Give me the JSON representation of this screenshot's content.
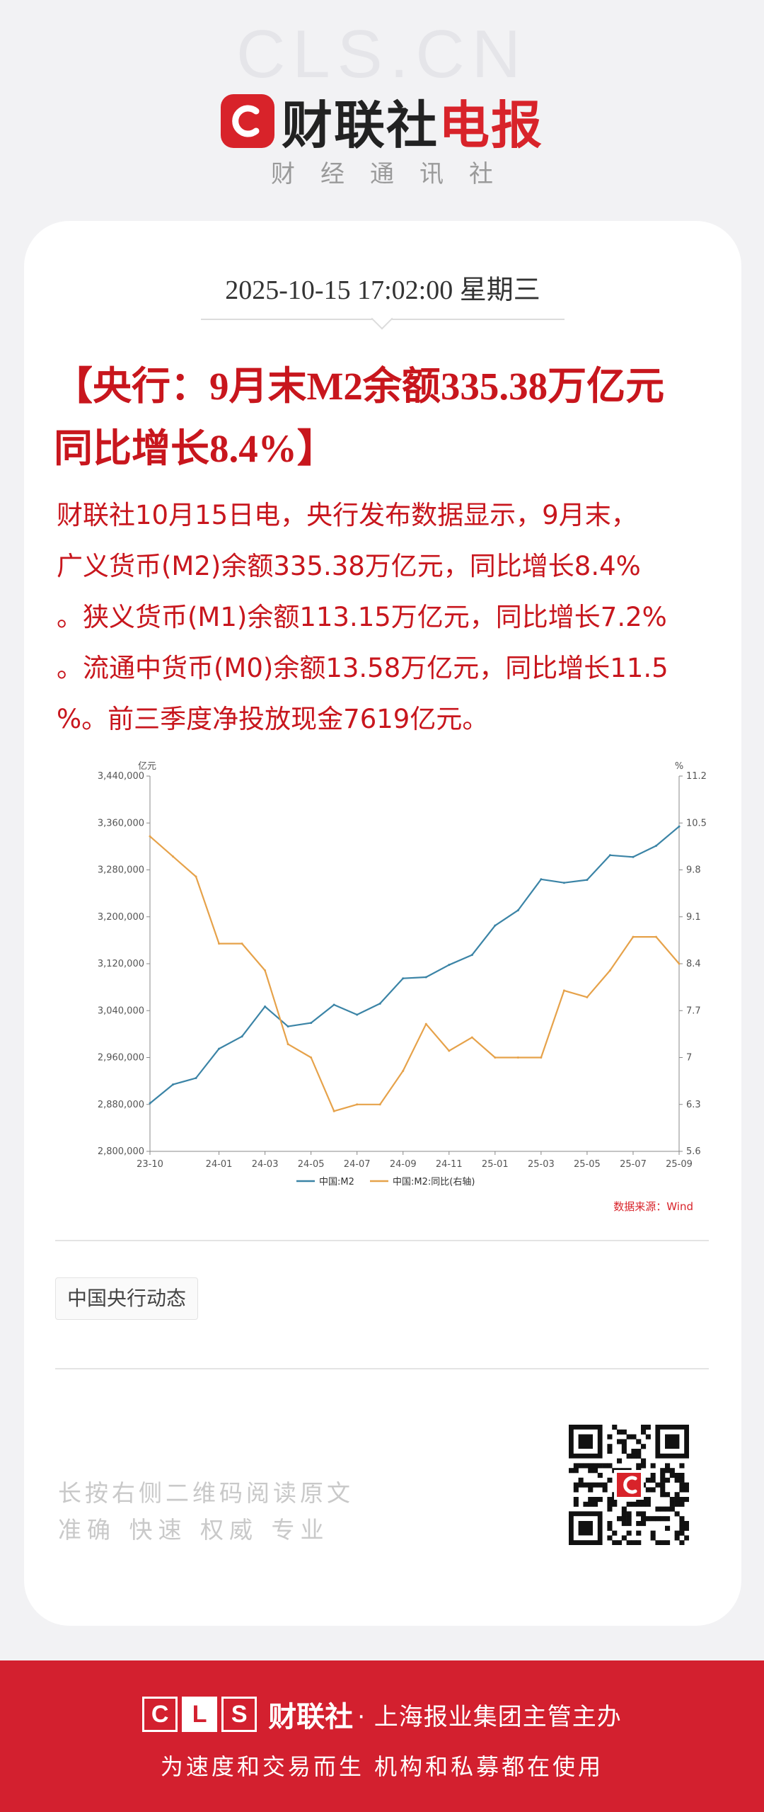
{
  "watermark": "CLS.CN",
  "brand": {
    "logo_letter": "C",
    "name_part1": "财联社",
    "name_part2": "电报",
    "tagline": "财经通讯社"
  },
  "article": {
    "datetime": "2025-10-15 17:02:00 星期三",
    "headline_line1": "【央行：9月末M2余额335.38万亿元",
    "headline_line2": "同比增长8.4%】",
    "body_lines": [
      "财联社10月15日电，央行发布数据显示，9月末，",
      "广义货币(M2)余额335.38万亿元，同比增长8.4%",
      "。狭义货币(M1)余额113.15万亿元，同比增长7.2%",
      "。流通中货币(M0)余额13.58万亿元，同比增长11.5",
      "%。前三季度净投放现金7619亿元。"
    ],
    "tag": "中国央行动态"
  },
  "chart_data": {
    "type": "line",
    "x": [
      "23-10",
      "23-11",
      "23-12",
      "24-01",
      "24-02",
      "24-03",
      "24-04",
      "24-05",
      "24-06",
      "24-07",
      "24-08",
      "24-09",
      "24-10",
      "24-11",
      "24-12",
      "25-01",
      "25-02",
      "25-03",
      "25-04",
      "25-05",
      "25-06",
      "25-07",
      "25-08",
      "25-09"
    ],
    "x_tick_labels": [
      "23-10",
      "24-01",
      "24-03",
      "24-05",
      "24-07",
      "24-09",
      "24-11",
      "25-01",
      "25-03",
      "25-05",
      "25-07",
      "25-09"
    ],
    "series": [
      {
        "name": "中国:M2",
        "axis": "left",
        "color": "#3b84a6",
        "values": [
          2882000,
          2914000,
          2925000,
          2975000,
          2996000,
          3047000,
          3013000,
          3019000,
          3050000,
          3033000,
          3052000,
          3095000,
          3097000,
          3118000,
          3135000,
          3185000,
          3211000,
          3264000,
          3258000,
          3263000,
          3305000,
          3302000,
          3321000,
          3354000
        ]
      },
      {
        "name": "中国:M2:同比(右轴)",
        "axis": "right",
        "color": "#e6a24a",
        "values": [
          10.3,
          10.0,
          9.7,
          8.7,
          8.7,
          8.3,
          7.2,
          7.0,
          6.2,
          6.3,
          6.3,
          6.8,
          7.5,
          7.1,
          7.3,
          7.0,
          7.0,
          7.0,
          8.0,
          7.9,
          8.3,
          8.8,
          8.8,
          8.4
        ]
      }
    ],
    "ylim_left": [
      2800000,
      3440000
    ],
    "ylim_right": [
      5.6,
      11.2
    ],
    "yticks_left": [
      "2,800,000",
      "2,880,000",
      "2,960,000",
      "3,040,000",
      "3,120,000",
      "3,200,000",
      "3,280,000",
      "3,360,000",
      "3,440,000"
    ],
    "yticks_right": [
      "5.6",
      "6.3",
      "7",
      "7.7",
      "8.4",
      "9.1",
      "9.8",
      "10.5",
      "11.2"
    ],
    "ylabel_left": "亿元",
    "ylabel_right": "%",
    "source": "数据来源：Wind",
    "legend_position": "bottom",
    "grid": false
  },
  "footer": {
    "line1": "长按右侧二维码阅读原文",
    "line2": "准确 快速 权威 专业"
  },
  "banner": {
    "cls_letters": [
      "C",
      "L",
      "S"
    ],
    "brand": "财联社",
    "desc": "· 上海报业集团主管主办",
    "slogan": "为速度和交易而生 机构和私募都在使用"
  },
  "colors": {
    "brand_red": "#d8232a",
    "banner_red": "#d3202f",
    "headline_red": "#c8161d"
  }
}
